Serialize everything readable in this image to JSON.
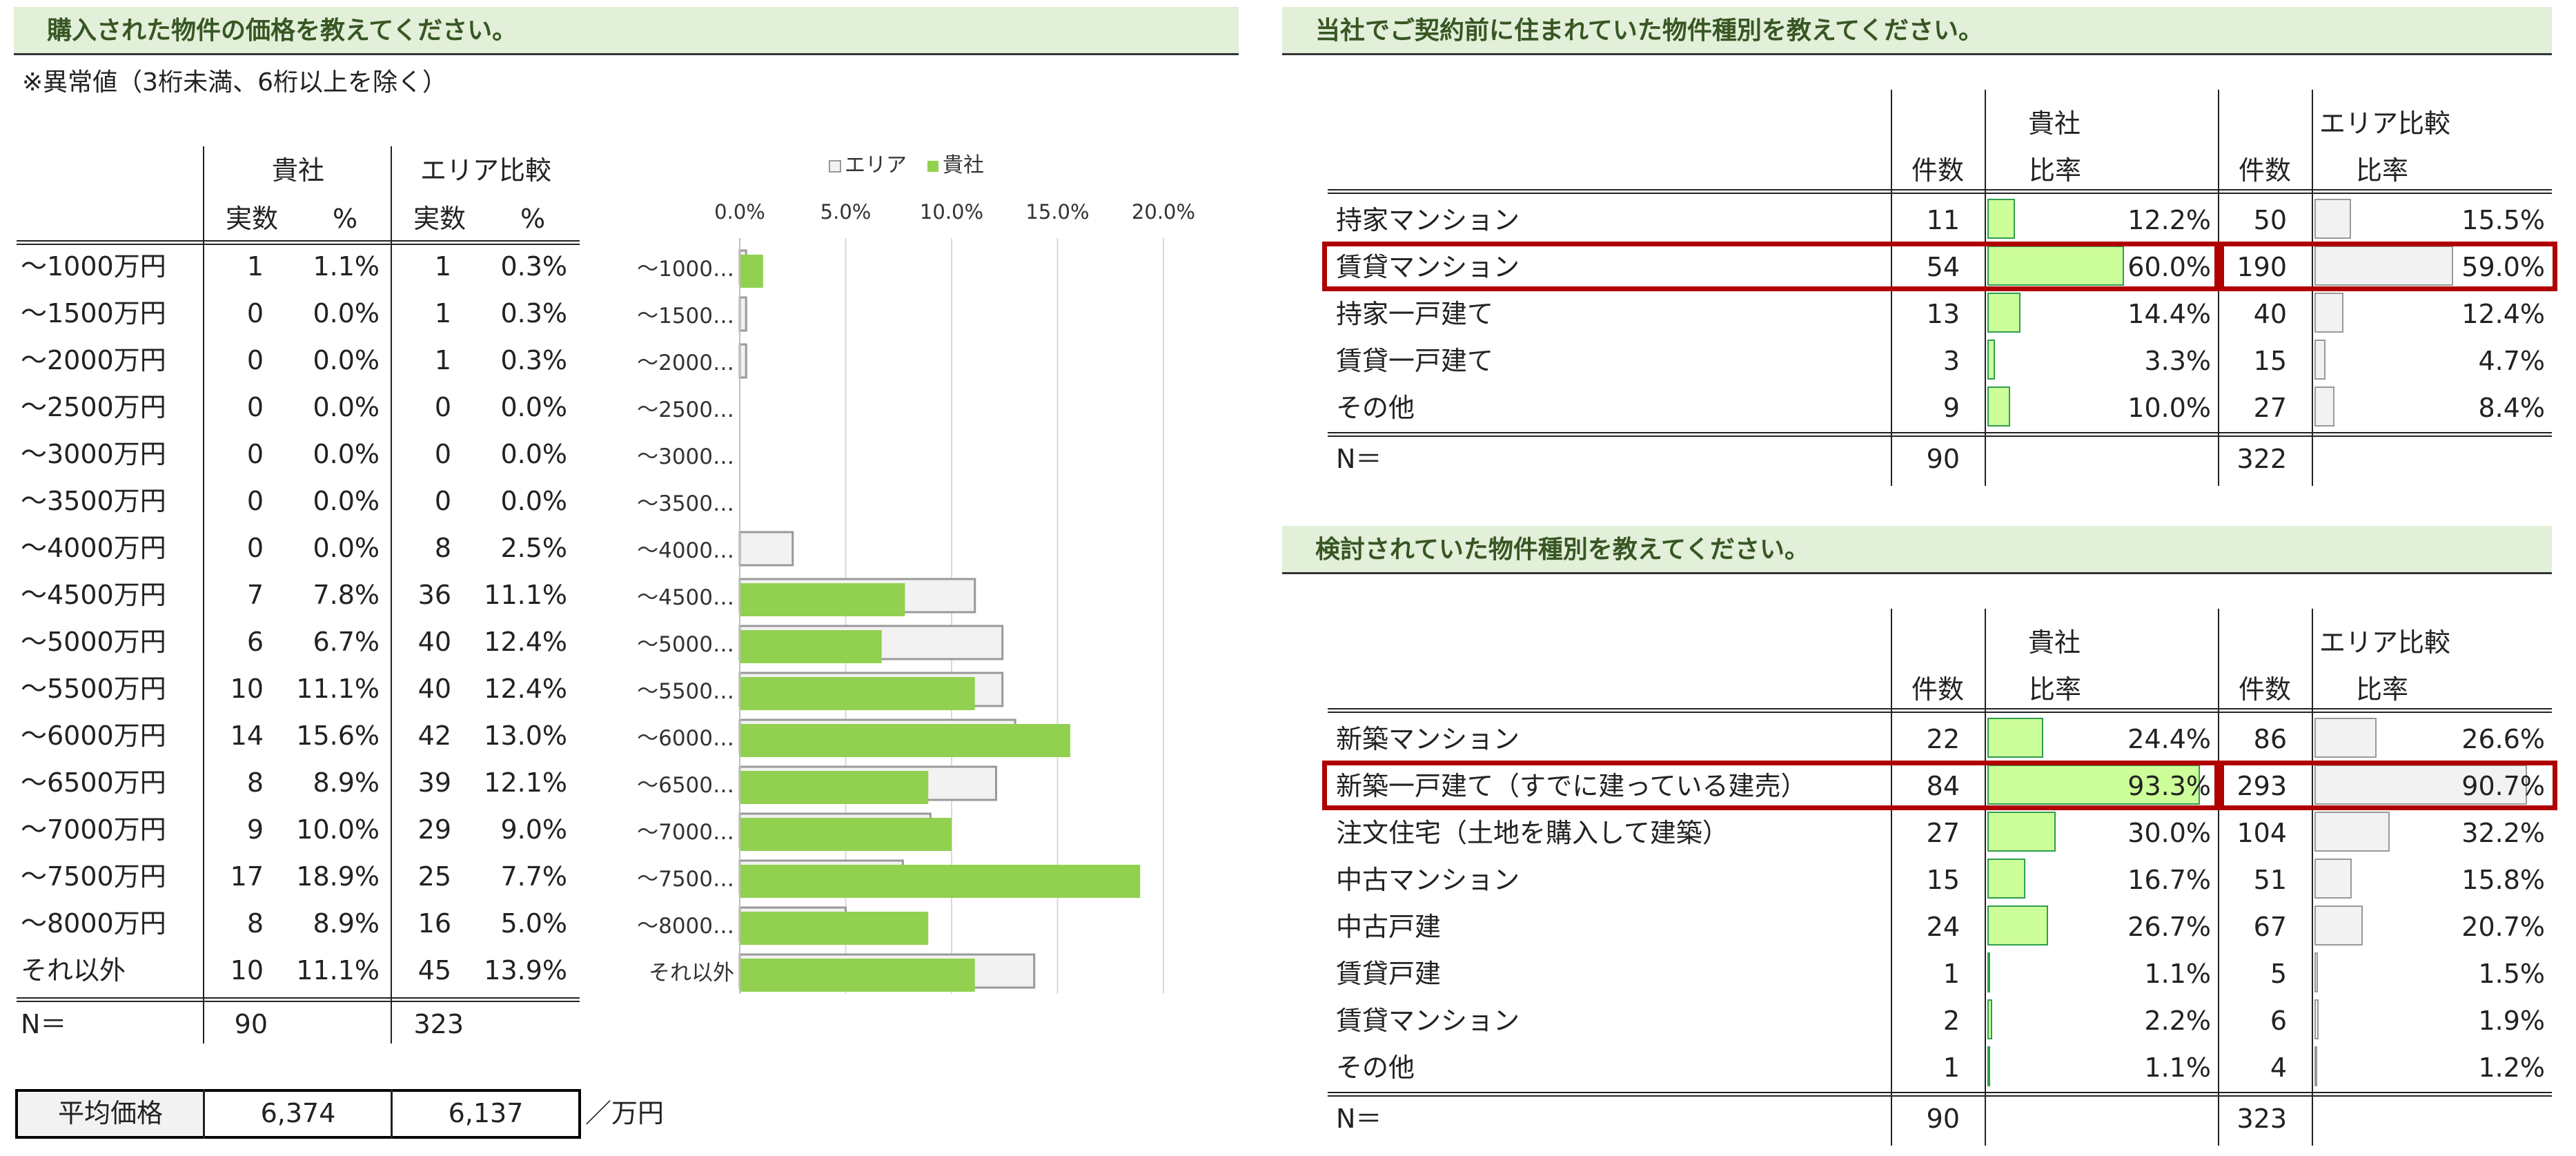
{
  "price": {
    "title": "購入された物件の価格を教えてください。",
    "note": "※異常値（3桁未満、6桁以上を除く）",
    "header_company": "貴社",
    "header_area": "エリア比較",
    "col_count": "実数",
    "col_pct": "%",
    "rows": [
      {
        "label": "～1000万円",
        "c_n": "1",
        "c_p": "1.1%",
        "a_n": "1",
        "a_p": "0.3%"
      },
      {
        "label": "～1500万円",
        "c_n": "0",
        "c_p": "0.0%",
        "a_n": "1",
        "a_p": "0.3%"
      },
      {
        "label": "～2000万円",
        "c_n": "0",
        "c_p": "0.0%",
        "a_n": "1",
        "a_p": "0.3%"
      },
      {
        "label": "～2500万円",
        "c_n": "0",
        "c_p": "0.0%",
        "a_n": "0",
        "a_p": "0.0%"
      },
      {
        "label": "～3000万円",
        "c_n": "0",
        "c_p": "0.0%",
        "a_n": "0",
        "a_p": "0.0%"
      },
      {
        "label": "～3500万円",
        "c_n": "0",
        "c_p": "0.0%",
        "a_n": "0",
        "a_p": "0.0%"
      },
      {
        "label": "～4000万円",
        "c_n": "0",
        "c_p": "0.0%",
        "a_n": "8",
        "a_p": "2.5%"
      },
      {
        "label": "～4500万円",
        "c_n": "7",
        "c_p": "7.8%",
        "a_n": "36",
        "a_p": "11.1%"
      },
      {
        "label": "～5000万円",
        "c_n": "6",
        "c_p": "6.7%",
        "a_n": "40",
        "a_p": "12.4%"
      },
      {
        "label": "～5500万円",
        "c_n": "10",
        "c_p": "11.1%",
        "a_n": "40",
        "a_p": "12.4%"
      },
      {
        "label": "～6000万円",
        "c_n": "14",
        "c_p": "15.6%",
        "a_n": "42",
        "a_p": "13.0%"
      },
      {
        "label": "～6500万円",
        "c_n": "8",
        "c_p": "8.9%",
        "a_n": "39",
        "a_p": "12.1%"
      },
      {
        "label": "～7000万円",
        "c_n": "9",
        "c_p": "10.0%",
        "a_n": "29",
        "a_p": "9.0%"
      },
      {
        "label": "～7500万円",
        "c_n": "17",
        "c_p": "18.9%",
        "a_n": "25",
        "a_p": "7.7%"
      },
      {
        "label": "～8000万円",
        "c_n": "8",
        "c_p": "8.9%",
        "a_n": "16",
        "a_p": "5.0%"
      },
      {
        "label": "それ以外",
        "c_n": "10",
        "c_p": "11.1%",
        "a_n": "45",
        "a_p": "13.9%"
      }
    ],
    "n_label": "N＝",
    "n_company": "90",
    "n_area": "323",
    "avg_label": "平均価格",
    "avg_company": "6,374",
    "avg_area": "6,137",
    "avg_unit": "／万円"
  },
  "chart_data": {
    "type": "bar",
    "orientation": "horizontal",
    "legend": [
      "エリア",
      "貴社"
    ],
    "legend_position": "top",
    "xlim": [
      0,
      20
    ],
    "xticks": [
      "0.0%",
      "5.0%",
      "10.0%",
      "15.0%",
      "20.0%"
    ],
    "categories": [
      "～1000…",
      "～1500…",
      "～2000…",
      "～2500…",
      "～3000…",
      "～3500…",
      "～4000…",
      "～4500…",
      "～5000…",
      "～5500…",
      "～6000…",
      "～6500…",
      "～7000…",
      "～7500…",
      "～8000…",
      "それ以外"
    ],
    "series": [
      {
        "name": "エリア",
        "color": "#f2f2f2",
        "values": [
          0.3,
          0.3,
          0.3,
          0.0,
          0.0,
          0.0,
          2.5,
          11.1,
          12.4,
          12.4,
          13.0,
          12.1,
          9.0,
          7.7,
          5.0,
          13.9
        ]
      },
      {
        "name": "貴社",
        "color": "#92d050",
        "values": [
          1.1,
          0.0,
          0.0,
          0.0,
          0.0,
          0.0,
          0.0,
          7.8,
          6.7,
          11.1,
          15.6,
          8.9,
          10.0,
          18.9,
          8.9,
          11.1
        ]
      }
    ],
    "grid": true
  },
  "prev": {
    "title": "当社でご契約前に住まれていた物件種別を教えてください。",
    "header_company": "貴社",
    "header_area": "エリア比較",
    "col_count": "件数",
    "col_ratio": "比率",
    "rows": [
      {
        "label": "持家マンション",
        "c_n": "11",
        "c_p": "12.2%",
        "c_v": 12.2,
        "a_n": "50",
        "a_p": "15.5%",
        "a_v": 15.5
      },
      {
        "label": "賃貸マンション",
        "c_n": "54",
        "c_p": "60.0%",
        "c_v": 60.0,
        "a_n": "190",
        "a_p": "59.0%",
        "a_v": 59.0
      },
      {
        "label": "持家一戸建て",
        "c_n": "13",
        "c_p": "14.4%",
        "c_v": 14.4,
        "a_n": "40",
        "a_p": "12.4%",
        "a_v": 12.4
      },
      {
        "label": "賃貸一戸建て",
        "c_n": "3",
        "c_p": "3.3%",
        "c_v": 3.3,
        "a_n": "15",
        "a_p": "4.7%",
        "a_v": 4.7
      },
      {
        "label": "その他",
        "c_n": "9",
        "c_p": "10.0%",
        "c_v": 10.0,
        "a_n": "27",
        "a_p": "8.4%",
        "a_v": 8.4
      }
    ],
    "n_label": "N＝",
    "n_company": "90",
    "n_area": "322",
    "highlight_index": 1
  },
  "considered": {
    "title": "検討されていた物件種別を教えてください。",
    "header_company": "貴社",
    "header_area": "エリア比較",
    "col_count": "件数",
    "col_ratio": "比率",
    "rows": [
      {
        "label": "新築マンション",
        "c_n": "22",
        "c_p": "24.4%",
        "c_v": 24.4,
        "a_n": "86",
        "a_p": "26.6%",
        "a_v": 26.6
      },
      {
        "label": "新築一戸建て（すでに建っている建売）",
        "c_n": "84",
        "c_p": "93.3%",
        "c_v": 93.3,
        "a_n": "293",
        "a_p": "90.7%",
        "a_v": 90.7
      },
      {
        "label": "注文住宅（土地を購入して建築）",
        "c_n": "27",
        "c_p": "30.0%",
        "c_v": 30.0,
        "a_n": "104",
        "a_p": "32.2%",
        "a_v": 32.2
      },
      {
        "label": "中古マンション",
        "c_n": "15",
        "c_p": "16.7%",
        "c_v": 16.7,
        "a_n": "51",
        "a_p": "15.8%",
        "a_v": 15.8
      },
      {
        "label": "中古戸建",
        "c_n": "24",
        "c_p": "26.7%",
        "c_v": 26.7,
        "a_n": "67",
        "a_p": "20.7%",
        "a_v": 20.7
      },
      {
        "label": "賃貸戸建",
        "c_n": "1",
        "c_p": "1.1%",
        "c_v": 1.1,
        "a_n": "5",
        "a_p": "1.5%",
        "a_v": 1.5
      },
      {
        "label": "賃貸マンション",
        "c_n": "2",
        "c_p": "2.2%",
        "c_v": 2.2,
        "a_n": "6",
        "a_p": "1.9%",
        "a_v": 1.9
      },
      {
        "label": "その他",
        "c_n": "1",
        "c_p": "1.1%",
        "c_v": 1.1,
        "a_n": "4",
        "a_p": "1.2%",
        "a_v": 1.2
      }
    ],
    "n_label": "N＝",
    "n_company": "90",
    "n_area": "323",
    "highlight_index": 1
  }
}
